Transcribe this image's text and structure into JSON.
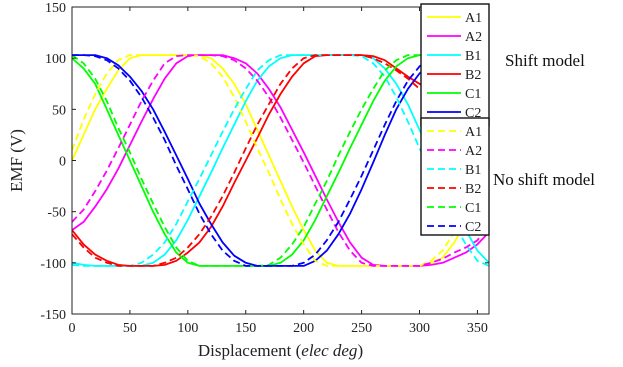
{
  "side_labels": {
    "group1": "Shift model",
    "group2": "No shift model"
  },
  "chart_data": {
    "type": "line",
    "xlabel_prefix": "Displacement (",
    "xlabel_italic": "elec deg",
    "xlabel_suffix": ")",
    "ylabel": "EMF (V)",
    "xlim": [
      0,
      360
    ],
    "ylim": [
      -150,
      150
    ],
    "xticks": [
      0,
      50,
      100,
      150,
      200,
      250,
      300,
      350
    ],
    "yticks": [
      150,
      100,
      50,
      0,
      -50,
      -100,
      -150
    ],
    "grid": false,
    "legend_position": "top-right",
    "colors": {
      "A1": "#ffff00",
      "A2": "#ff00ff",
      "B1": "#00ffff",
      "B2": "#ff0000",
      "C1": "#00ff00",
      "C2": "#0000ff"
    },
    "series": [
      {
        "name": "A1",
        "group": "Shift model",
        "style": "solid",
        "x": [
          0,
          10,
          20,
          30,
          40,
          50,
          60,
          70,
          80,
          90,
          100,
          110,
          120,
          130,
          140,
          150,
          160,
          170,
          180,
          190,
          200,
          210,
          220,
          230,
          240,
          250,
          260,
          270,
          280,
          290,
          300,
          310,
          320,
          330,
          340,
          350,
          360
        ],
        "y": [
          0,
          25,
          50,
          70,
          88,
          100,
          103,
          103,
          103,
          103,
          103,
          103,
          100,
          90,
          75,
          55,
          30,
          5,
          -20,
          -45,
          -68,
          -88,
          -100,
          -103,
          -103,
          -103,
          -103,
          -103,
          -103,
          -103,
          -103,
          -100,
          -95,
          -80,
          -60,
          -35,
          -10
        ]
      },
      {
        "name": "A2",
        "group": "Shift model",
        "style": "solid",
        "x": [
          0,
          10,
          20,
          30,
          40,
          50,
          60,
          70,
          80,
          90,
          100,
          110,
          120,
          130,
          140,
          150,
          160,
          170,
          180,
          190,
          200,
          210,
          220,
          230,
          240,
          250,
          260,
          270,
          280,
          290,
          300,
          310,
          320,
          330,
          340,
          350,
          360
        ],
        "y": [
          -68,
          -60,
          -45,
          -28,
          -8,
          15,
          38,
          60,
          80,
          95,
          102,
          103,
          103,
          103,
          100,
          95,
          85,
          70,
          52,
          30,
          8,
          -15,
          -38,
          -60,
          -80,
          -95,
          -102,
          -103,
          -103,
          -103,
          -103,
          -102,
          -100,
          -95,
          -90,
          -82,
          -70
        ]
      },
      {
        "name": "B1",
        "group": "Shift model",
        "style": "solid",
        "x": [
          0,
          10,
          20,
          30,
          40,
          50,
          60,
          70,
          80,
          90,
          100,
          110,
          120,
          130,
          140,
          150,
          160,
          170,
          180,
          190,
          200,
          210,
          220,
          230,
          240,
          250,
          260,
          270,
          280,
          290,
          300,
          310,
          320,
          330,
          340,
          350,
          360
        ],
        "y": [
          -100,
          -102,
          -103,
          -103,
          -103,
          -103,
          -103,
          -100,
          -92,
          -78,
          -58,
          -35,
          -12,
          12,
          35,
          58,
          78,
          92,
          100,
          103,
          103,
          103,
          103,
          103,
          103,
          103,
          100,
          90,
          75,
          55,
          30,
          5,
          -20,
          -45,
          -68,
          -88,
          -100
        ]
      },
      {
        "name": "B2",
        "group": "Shift model",
        "style": "solid",
        "x": [
          0,
          10,
          20,
          30,
          40,
          50,
          60,
          70,
          80,
          90,
          100,
          110,
          120,
          130,
          140,
          150,
          160,
          170,
          180,
          190,
          200,
          210,
          220,
          230,
          240,
          250,
          260,
          270,
          280,
          290,
          300,
          310,
          320,
          330,
          340,
          350,
          360
        ],
        "y": [
          -68,
          -82,
          -92,
          -98,
          -102,
          -103,
          -103,
          -103,
          -102,
          -98,
          -90,
          -80,
          -65,
          -45,
          -22,
          0,
          22,
          45,
          65,
          82,
          95,
          102,
          103,
          103,
          103,
          103,
          102,
          98,
          90,
          82,
          75,
          68,
          55,
          40,
          20,
          0,
          -20
        ]
      },
      {
        "name": "C1",
        "group": "Shift model",
        "style": "solid",
        "x": [
          0,
          10,
          20,
          30,
          40,
          50,
          60,
          70,
          80,
          90,
          100,
          110,
          120,
          130,
          140,
          150,
          160,
          170,
          180,
          190,
          200,
          210,
          220,
          230,
          240,
          250,
          260,
          270,
          280,
          290,
          300,
          310,
          320,
          330,
          340,
          350,
          360
        ],
        "y": [
          100,
          90,
          75,
          50,
          25,
          0,
          -25,
          -50,
          -72,
          -90,
          -100,
          -103,
          -103,
          -103,
          -103,
          -103,
          -103,
          -103,
          -100,
          -92,
          -78,
          -58,
          -35,
          -12,
          12,
          35,
          58,
          78,
          92,
          100,
          103,
          103,
          103,
          103,
          103,
          103,
          100
        ]
      },
      {
        "name": "C2",
        "group": "Shift model",
        "style": "solid",
        "x": [
          0,
          10,
          20,
          30,
          40,
          50,
          60,
          70,
          80,
          90,
          100,
          110,
          120,
          130,
          140,
          150,
          160,
          170,
          180,
          190,
          200,
          210,
          220,
          230,
          240,
          250,
          260,
          270,
          280,
          290,
          300,
          310,
          320,
          330,
          340,
          350,
          360
        ],
        "y": [
          103,
          103,
          103,
          100,
          93,
          82,
          68,
          50,
          28,
          5,
          -18,
          -42,
          -62,
          -80,
          -93,
          -100,
          -103,
          -103,
          -103,
          -103,
          -103,
          -98,
          -88,
          -72,
          -52,
          -28,
          -2,
          25,
          50,
          70,
          85,
          95,
          100,
          103,
          103,
          103,
          103
        ]
      },
      {
        "name": "A1",
        "group": "No shift model",
        "style": "dashed",
        "x": [
          0,
          10,
          20,
          30,
          40,
          50,
          60,
          70,
          80,
          90,
          100,
          110,
          120,
          130,
          140,
          150,
          160,
          170,
          180,
          190,
          200,
          210,
          220,
          230,
          240,
          250,
          260,
          270,
          280,
          290,
          300,
          310,
          320,
          330,
          340,
          350,
          360
        ],
        "y": [
          10,
          40,
          65,
          85,
          98,
          103,
          103,
          103,
          103,
          103,
          103,
          102,
          95,
          82,
          62,
          38,
          12,
          -12,
          -38,
          -62,
          -82,
          -98,
          -103,
          -103,
          -103,
          -103,
          -103,
          -103,
          -103,
          -103,
          -103,
          -98,
          -88,
          -70,
          -48,
          -22,
          5
        ]
      },
      {
        "name": "A2",
        "group": "No shift model",
        "style": "dashed",
        "x": [
          0,
          10,
          20,
          30,
          40,
          50,
          60,
          70,
          80,
          90,
          100,
          110,
          120,
          130,
          140,
          150,
          160,
          170,
          180,
          190,
          200,
          210,
          220,
          230,
          240,
          250,
          260,
          270,
          280,
          290,
          300,
          310,
          320,
          330,
          340,
          350,
          360
        ],
        "y": [
          -60,
          -48,
          -30,
          -10,
          12,
          35,
          58,
          78,
          95,
          102,
          103,
          103,
          103,
          102,
          98,
          90,
          78,
          62,
          42,
          20,
          -2,
          -25,
          -48,
          -70,
          -88,
          -100,
          -103,
          -103,
          -103,
          -103,
          -103,
          -100,
          -96,
          -90,
          -85,
          -78,
          -62
        ]
      },
      {
        "name": "B1",
        "group": "No shift model",
        "style": "dashed",
        "x": [
          0,
          10,
          20,
          30,
          40,
          50,
          60,
          70,
          80,
          90,
          100,
          110,
          120,
          130,
          140,
          150,
          160,
          170,
          180,
          190,
          200,
          210,
          220,
          230,
          240,
          250,
          260,
          270,
          280,
          290,
          300,
          310,
          320,
          330,
          340,
          350,
          360
        ],
        "y": [
          -102,
          -103,
          -103,
          -103,
          -103,
          -103,
          -100,
          -92,
          -80,
          -62,
          -40,
          -18,
          5,
          28,
          50,
          70,
          88,
          98,
          103,
          103,
          103,
          103,
          103,
          103,
          103,
          102,
          95,
          82,
          62,
          38,
          12,
          -12,
          -38,
          -62,
          -82,
          -98,
          -103
        ]
      },
      {
        "name": "B2",
        "group": "No shift model",
        "style": "dashed",
        "x": [
          0,
          10,
          20,
          30,
          40,
          50,
          60,
          70,
          80,
          90,
          100,
          110,
          120,
          130,
          140,
          150,
          160,
          170,
          180,
          190,
          200,
          210,
          220,
          230,
          240,
          250,
          260,
          270,
          280,
          290,
          300,
          310,
          320,
          330,
          340,
          350,
          360
        ],
        "y": [
          -72,
          -85,
          -95,
          -100,
          -103,
          -103,
          -103,
          -103,
          -100,
          -95,
          -85,
          -72,
          -55,
          -35,
          -12,
          12,
          35,
          55,
          75,
          90,
          100,
          103,
          103,
          103,
          103,
          103,
          100,
          95,
          88,
          80,
          70,
          58,
          42,
          22,
          0,
          -22,
          -42
        ]
      },
      {
        "name": "C1",
        "group": "No shift model",
        "style": "dashed",
        "x": [
          0,
          10,
          20,
          30,
          40,
          50,
          60,
          70,
          80,
          90,
          100,
          110,
          120,
          130,
          140,
          150,
          160,
          170,
          180,
          190,
          200,
          210,
          220,
          230,
          240,
          250,
          260,
          270,
          280,
          290,
          300,
          310,
          320,
          330,
          340,
          350,
          360
        ],
        "y": [
          103,
          95,
          80,
          58,
          32,
          8,
          -18,
          -42,
          -65,
          -85,
          -98,
          -103,
          -103,
          -103,
          -103,
          -103,
          -103,
          -102,
          -95,
          -82,
          -65,
          -42,
          -20,
          5,
          28,
          50,
          70,
          88,
          98,
          103,
          103,
          103,
          103,
          103,
          103,
          103,
          103
        ]
      },
      {
        "name": "C2",
        "group": "No shift model",
        "style": "dashed",
        "x": [
          0,
          10,
          20,
          30,
          40,
          50,
          60,
          70,
          80,
          90,
          100,
          110,
          120,
          130,
          140,
          150,
          160,
          170,
          180,
          190,
          200,
          210,
          220,
          230,
          240,
          250,
          260,
          270,
          280,
          290,
          300,
          310,
          320,
          330,
          340,
          350,
          360
        ],
        "y": [
          103,
          103,
          102,
          98,
          90,
          78,
          62,
          42,
          20,
          -5,
          -28,
          -52,
          -72,
          -88,
          -98,
          -103,
          -103,
          -103,
          -103,
          -103,
          -100,
          -92,
          -78,
          -60,
          -38,
          -15,
          10,
          35,
          58,
          78,
          92,
          100,
          103,
          103,
          103,
          103,
          103
        ]
      }
    ]
  }
}
